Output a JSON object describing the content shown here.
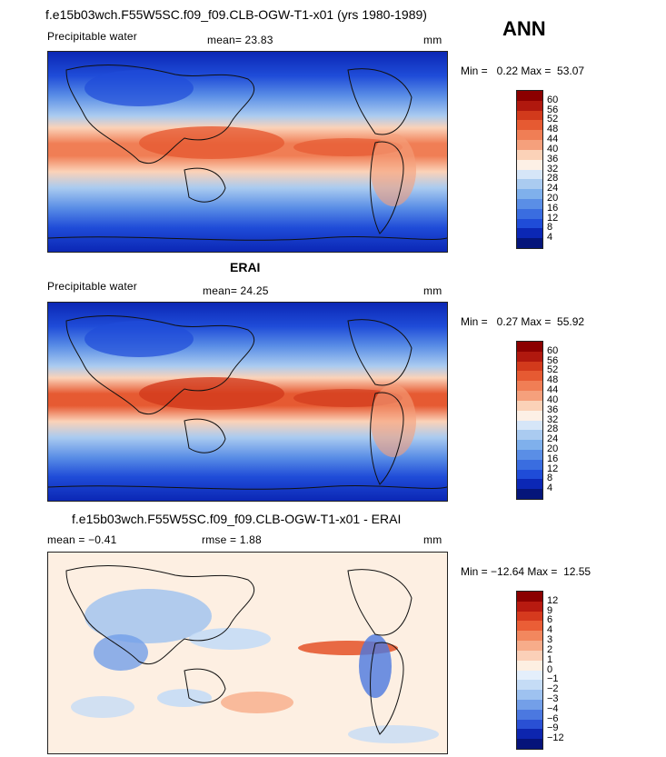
{
  "panel1": {
    "title": "f.e15b03wch.F55W5SC.f09_f09.CLB-OGW-T1-x01 (yrs 1980-1989)",
    "season": "ANN",
    "varname": "Precipitable water",
    "mean_text": "mean=  23.83",
    "units": "mm",
    "minmax": "Min =   0.22 Max =  53.07",
    "colorbar": {
      "levels": [
        "60",
        "56",
        "52",
        "48",
        "44",
        "40",
        "36",
        "32",
        "28",
        "24",
        "20",
        "16",
        "12",
        "8",
        "4"
      ],
      "colors": [
        "#8b0000",
        "#b0180e",
        "#d23a1c",
        "#e65a32",
        "#f07e55",
        "#f5a07c",
        "#fbd2b8",
        "#fdf0e6",
        "#d6e6f8",
        "#aacbf0",
        "#7fb0ec",
        "#5a8ee6",
        "#3a6de0",
        "#1f4cd8",
        "#0b27b5",
        "#05157a"
      ]
    }
  },
  "panel2": {
    "title": "ERAI",
    "varname": "Precipitable water",
    "mean_text": "mean=  24.25",
    "units": "mm",
    "minmax": "Min =   0.27 Max =  55.92",
    "colorbar": {
      "levels": [
        "60",
        "56",
        "52",
        "48",
        "44",
        "40",
        "36",
        "32",
        "28",
        "24",
        "20",
        "16",
        "12",
        "8",
        "4"
      ],
      "colors": [
        "#8b0000",
        "#b0180e",
        "#d23a1c",
        "#e65a32",
        "#f07e55",
        "#f5a07c",
        "#fbd2b8",
        "#fdf0e6",
        "#d6e6f8",
        "#aacbf0",
        "#7fb0ec",
        "#5a8ee6",
        "#3a6de0",
        "#1f4cd8",
        "#0b27b5",
        "#05157a"
      ]
    }
  },
  "panel3": {
    "title": "f.e15b03wch.F55W5SC.f09_f09.CLB-OGW-T1-x01 - ERAI",
    "mean_text": "mean =  −0.41",
    "rmse_text": "rmse =    1.88",
    "units": "mm",
    "minmax": "Min = −12.64 Max =  12.55",
    "colorbar": {
      "levels": [
        "12",
        "9",
        "6",
        "4",
        "3",
        "2",
        "1",
        "0",
        "−1",
        "−2",
        "−3",
        "−4",
        "−6",
        "−9",
        "−12"
      ],
      "colors": [
        "#8b0000",
        "#b81a10",
        "#d63a1e",
        "#ea5e36",
        "#f2875e",
        "#f7ac8a",
        "#fbd0b8",
        "#fdefe2",
        "#e4effb",
        "#c5dcf6",
        "#9ec2f0",
        "#739fe8",
        "#4b78e0",
        "#2a50d4",
        "#0d25ae",
        "#06137a"
      ]
    }
  }
}
